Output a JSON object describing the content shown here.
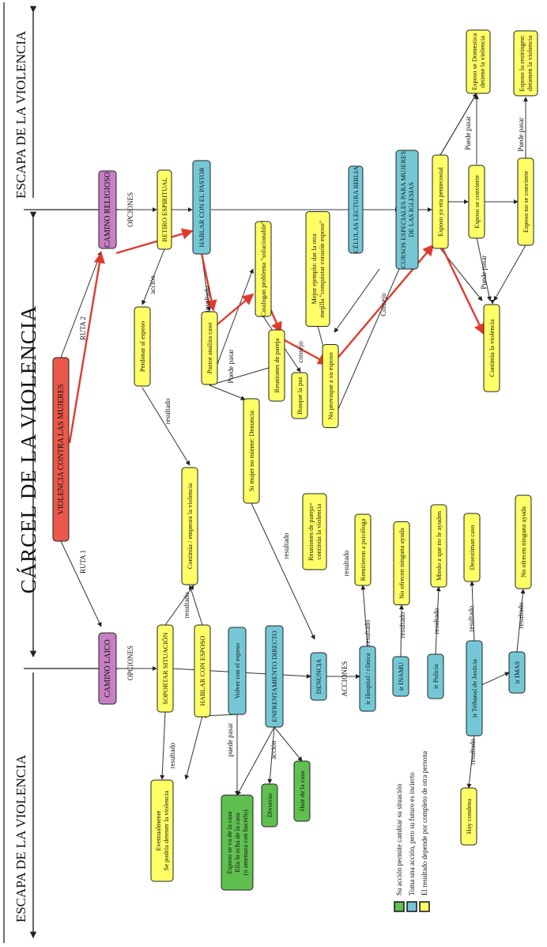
{
  "headers": {
    "escapa_top": "ESCAPA DE LA VIOLENCIA",
    "escapa_bottom": "ESCAPA DE LA VIOLENCIA",
    "carcel": "CÁRCEL DE LA VIOLENCIA"
  },
  "nodes": {
    "violencia": "VIOLENCIA CONTRA LAS MUJERES",
    "camino_religioso": "CAMINO RELIGIOSO",
    "camino_laico": "CAMINO LAICO",
    "retiro": "RETIRO ESPIRITUAL",
    "hablar_pastor": "HABLAR CON EL PASTOR",
    "celulas": "CÉLULAS LECTURA BIBLIA",
    "cursos": "CURSOS ESPECIALES PARA MUJERES DE LAS IGLESIAS",
    "esposo_pentecostal": "Esposo ya era pentecostal",
    "esposo_convierte": "Esposo se convierte",
    "esposo_no_convierte": "Esposo no se convierte",
    "esposo_domestica": "Esposo se Domestica detiene la violencia",
    "esposo_restringen": "Esposo lo restringen: detienen la violencia",
    "cataloga": "Catalogan problema \"solucionable\"",
    "mejor_ejemplo": "Mejor ejemplo: dar la otra mejilla \"conquistar corazón esposo\"",
    "continua_violencia_r": "Continúa la violencia",
    "perdonar": "Perdonar al esposo",
    "pastor_analiza": "Pastor analiza caso",
    "reuniones_pareja": "Reuniones de pareja",
    "busque_paz": "Busque la paz",
    "no_provoque": "No provoque a su esposo",
    "si_mujer": "Si mujer no miente: Denuncia",
    "continua_empeora": "Continúa / empeora la violencia",
    "reuniones_continua": "Reuniones de pareja= continúa la violencia",
    "remitieron": "Remitieron a psicóloga",
    "no_ofrecen_1": "No ofrecen ninguna ayuda",
    "miedo": "Miedo a que no le ayuden",
    "desestiman": "Desestiman caso",
    "no_ofrecen_2": "No ofrecen ninguna ayuda",
    "soportar": "SOPORTAR SITUACIÓN",
    "hablar_esposo": "HABLAR CON ESPOSO",
    "volver": "Volver con el esposo",
    "enfrentamiento": "ENFRENTAMIENTO DIRECTO",
    "denuncia": "DENUNCIA",
    "hospital": "ir Hospital / clínica",
    "inamu": "ir INAMU",
    "policia": "ir Policía",
    "tribunal": "ir Tribunal de Justicia",
    "imas": "ir IMAS",
    "eventualmente_1": "Eventualmente",
    "eventualmente_2": "Se podría detener la violencia",
    "esposo_va_1": "Esposo se va de la casa",
    "esposo_va_2": "Ella lo echa de la casa",
    "esposo_va_3": "(o amenaza con hacerlo)",
    "divorcio": "Divorcio",
    "huir": "Huir de la casa",
    "hay_condena": "Hay condena"
  },
  "labels": {
    "opciones_top": "OPCIONES",
    "opciones_bottom": "OPCIONES",
    "ruta1": "RUTA 1",
    "ruta2": "RUTA 2",
    "accion": "acción",
    "accion2": "acción",
    "resultado": "resultado",
    "puede_pasar": "Puede pasar",
    "puede_pasar_l": "puede pasar",
    "consejo": "consejo",
    "consejo2": "Consejo",
    "acciones": "ACCIONES"
  },
  "legend": [
    {
      "text": "Su acción permite cambiar su situación",
      "color": "#5fbf4f"
    },
    {
      "text": "Toma una acción, pero su futuro es incierto",
      "color": "#74c8d6"
    },
    {
      "text": "El resultado depende por completo de otra persona",
      "color": "#ffff66"
    }
  ]
}
